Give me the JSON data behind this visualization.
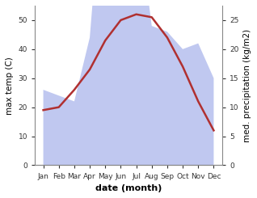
{
  "months": [
    "Jan",
    "Feb",
    "Mar",
    "Apr",
    "May",
    "Jun",
    "Jul",
    "Aug",
    "Sep",
    "Oct",
    "Nov",
    "Dec"
  ],
  "temperature": [
    19,
    20,
    26,
    33,
    43,
    50,
    52,
    51,
    44,
    34,
    22,
    12
  ],
  "rainfall": [
    13,
    12,
    11,
    22,
    55,
    46,
    45,
    24,
    23,
    20,
    21,
    15
  ],
  "temp_color": "#b03030",
  "rain_color": "#c0c8f0",
  "temp_ylim": [
    0,
    55
  ],
  "rain_ylim": [
    0,
    27.5
  ],
  "xlabel": "date (month)",
  "ylabel_left": "max temp (C)",
  "ylabel_right": "med. precipitation (kg/m2)",
  "bg_color": "#ffffff",
  "fontsize_labels": 7.5,
  "fontsize_ticks": 6.5,
  "fontsize_xlabel": 8,
  "linewidth": 1.8
}
